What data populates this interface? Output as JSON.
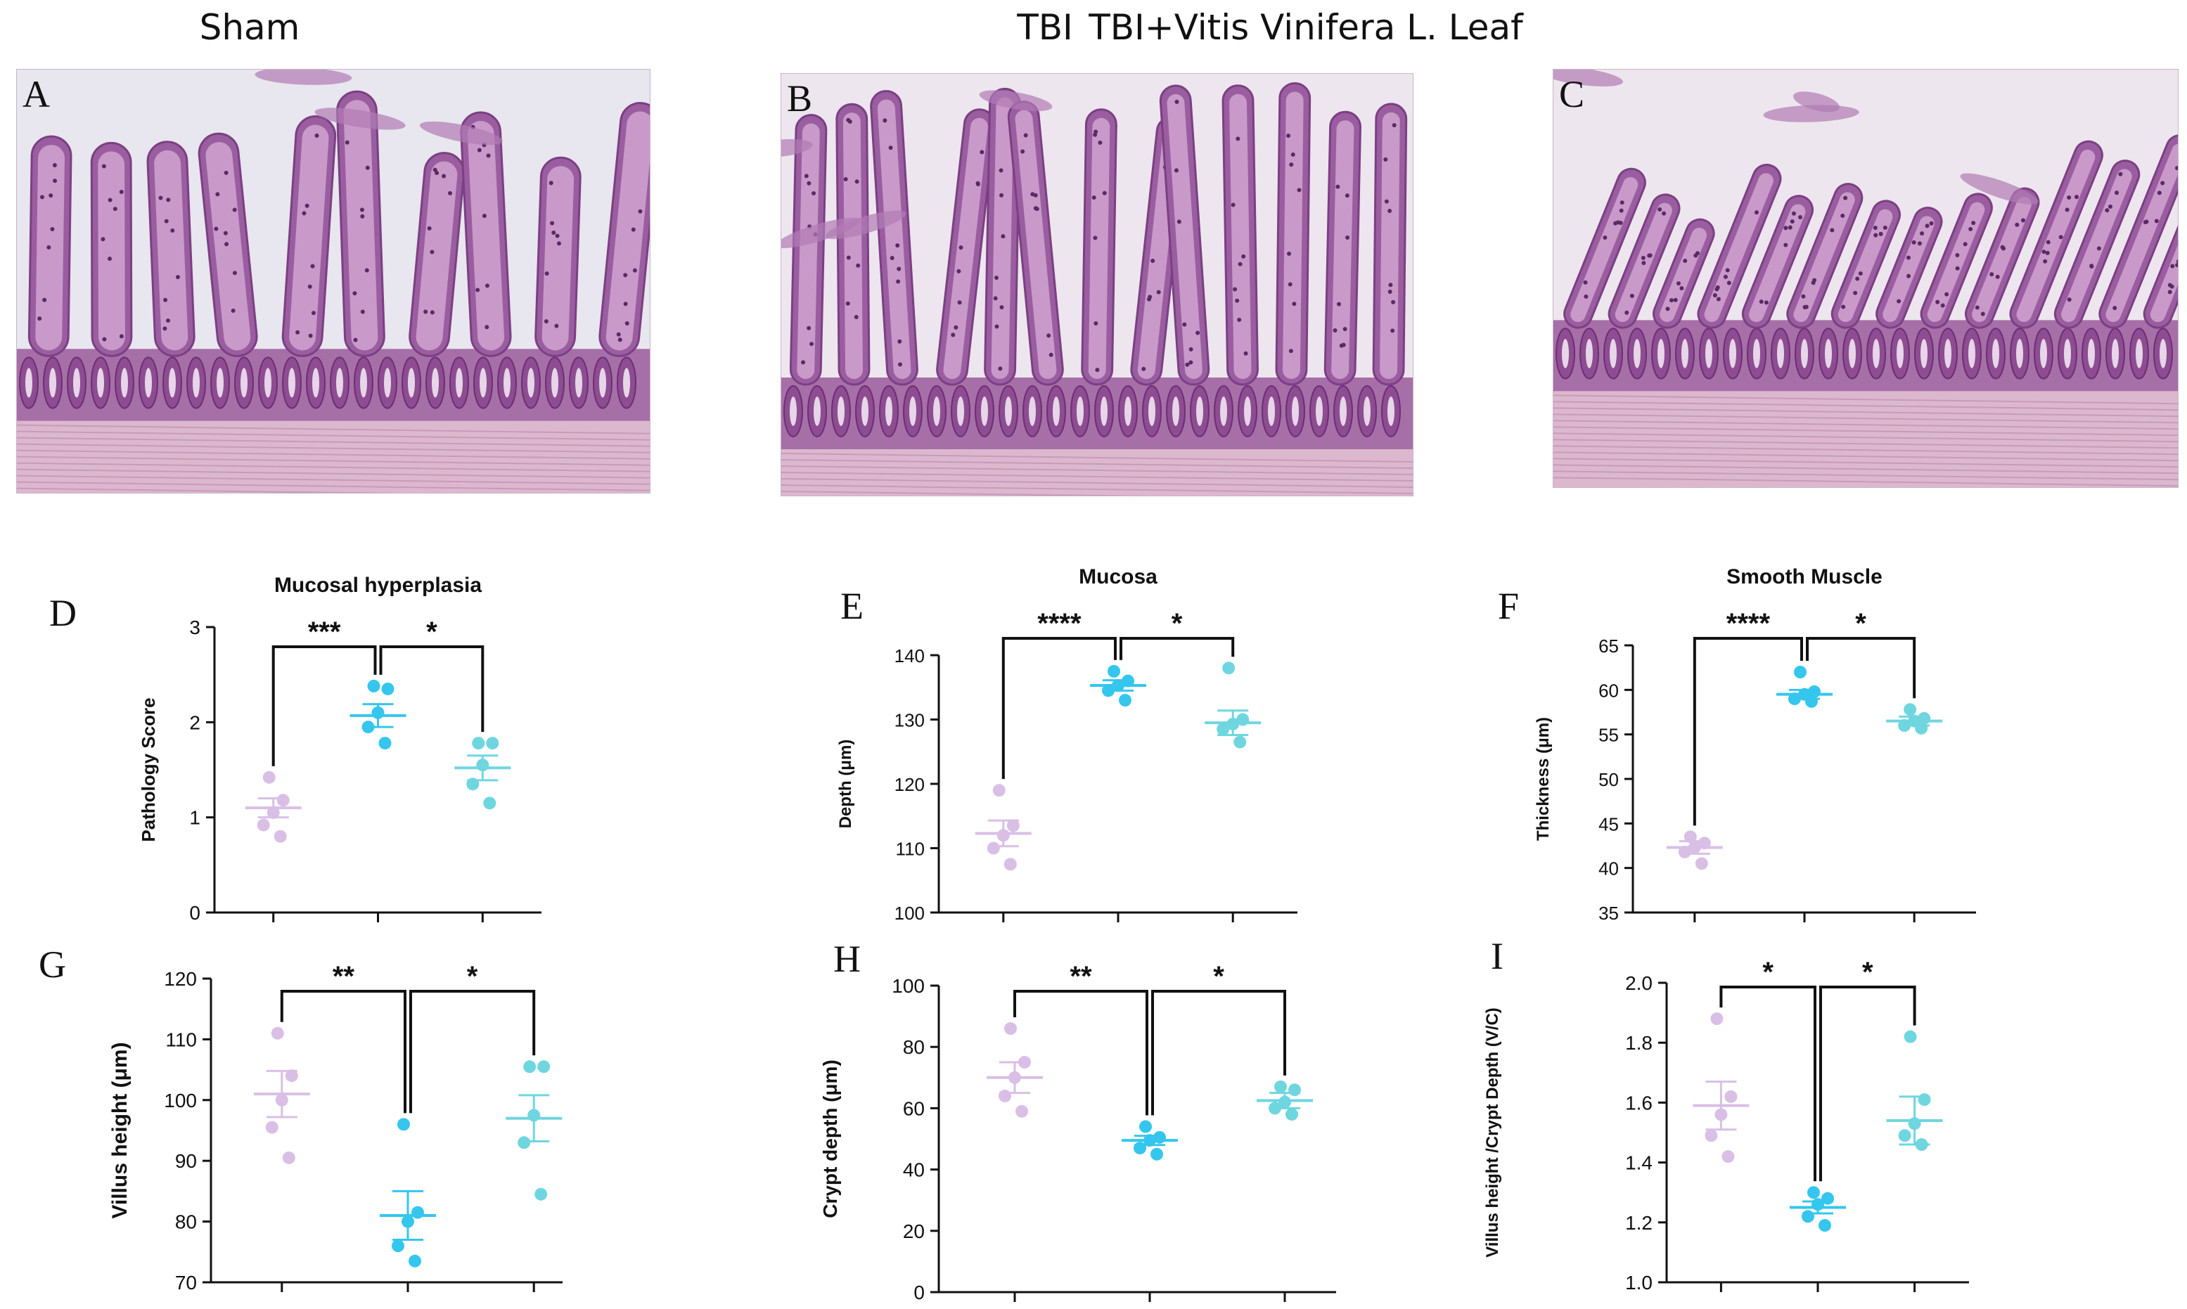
{
  "colors": {
    "sham": "#d9bfe6",
    "tbi": "#35c6ee",
    "treat": "#6fd6e0",
    "text": "#111111"
  },
  "columns": [
    {
      "title": "Sham",
      "letter": "A"
    },
    {
      "title": "TBI",
      "letter": "B"
    },
    {
      "title": "TBI+Vitis Vinifera L. Leaf",
      "letter": "C"
    }
  ],
  "chart_data": [
    {
      "type": "scatter",
      "letter": "D",
      "title": "Mucosal hyperplasia",
      "ylabel": "Pathology Score",
      "ylim": [
        0,
        3
      ],
      "yticks": [
        0,
        1,
        2,
        3
      ],
      "groups": [
        {
          "color": "#d9bfe6",
          "mean": 1.1,
          "sem": 0.1,
          "points": [
            1.42,
            1.18,
            1.05,
            0.92,
            0.8
          ]
        },
        {
          "color": "#35c6ee",
          "mean": 2.07,
          "sem": 0.12,
          "points": [
            2.38,
            2.35,
            2.1,
            1.95,
            1.78
          ]
        },
        {
          "color": "#6fd6e0",
          "mean": 1.52,
          "sem": 0.13,
          "points": [
            1.78,
            1.78,
            1.55,
            1.35,
            1.15
          ]
        }
      ],
      "significance": [
        {
          "from": 0,
          "to": 1,
          "label": "***"
        },
        {
          "from": 1,
          "to": 2,
          "label": "*"
        }
      ]
    },
    {
      "type": "scatter",
      "letter": "E",
      "title": "Mucosa",
      "ylabel": "Depth (μm)",
      "ylim": [
        100,
        140
      ],
      "yticks": [
        100,
        110,
        120,
        130,
        140
      ],
      "groups": [
        {
          "color": "#d9bfe6",
          "mean": 112.3,
          "sem": 2.0,
          "points": [
            119,
            113.5,
            112,
            110,
            107.5
          ]
        },
        {
          "color": "#35c6ee",
          "mean": 135.3,
          "sem": 0.8,
          "points": [
            137.5,
            136,
            135.3,
            134.5,
            133
          ]
        },
        {
          "color": "#6fd6e0",
          "mean": 129.5,
          "sem": 1.9,
          "points": [
            138,
            130,
            129.3,
            128.5,
            126.5
          ]
        }
      ],
      "significance": [
        {
          "from": 0,
          "to": 1,
          "label": "****"
        },
        {
          "from": 1,
          "to": 2,
          "label": "*"
        }
      ]
    },
    {
      "type": "scatter",
      "letter": "F",
      "title": "Smooth Muscle",
      "ylabel": "Thickness (μm)",
      "ylim": [
        35,
        65
      ],
      "yticks": [
        35,
        40,
        45,
        50,
        55,
        60,
        65
      ],
      "groups": [
        {
          "color": "#d9bfe6",
          "mean": 42.3,
          "sem": 0.7,
          "points": [
            43.5,
            42.8,
            42.3,
            41.8,
            40.5
          ]
        },
        {
          "color": "#35c6ee",
          "mean": 59.5,
          "sem": 0.5,
          "points": [
            62,
            59.8,
            59.5,
            59,
            58.7
          ]
        },
        {
          "color": "#6fd6e0",
          "mean": 56.5,
          "sem": 0.5,
          "points": [
            57.8,
            56.8,
            56.5,
            56,
            55.7
          ]
        }
      ],
      "significance": [
        {
          "from": 0,
          "to": 1,
          "label": "****"
        },
        {
          "from": 1,
          "to": 2,
          "label": "*"
        }
      ]
    },
    {
      "type": "scatter",
      "letter": "G",
      "title": "",
      "ylabel": "Villus height  (μm)",
      "ylim": [
        70,
        120
      ],
      "yticks": [
        70,
        80,
        90,
        100,
        110,
        120
      ],
      "groups": [
        {
          "color": "#d9bfe6",
          "mean": 101,
          "sem": 3.8,
          "points": [
            111,
            104,
            100,
            95.5,
            90.5
          ]
        },
        {
          "color": "#35c6ee",
          "mean": 81,
          "sem": 4.0,
          "points": [
            96,
            81.5,
            80,
            76,
            73.5
          ]
        },
        {
          "color": "#6fd6e0",
          "mean": 97,
          "sem": 3.8,
          "points": [
            105.5,
            105.5,
            97.5,
            93,
            84.5
          ]
        }
      ],
      "significance": [
        {
          "from": 0,
          "to": 1,
          "label": "**"
        },
        {
          "from": 1,
          "to": 2,
          "label": "*"
        }
      ]
    },
    {
      "type": "scatter",
      "letter": "H",
      "title": "",
      "ylabel": "Crypt depth  (μm)",
      "ylim": [
        0,
        100
      ],
      "yticks": [
        0,
        20,
        40,
        60,
        80,
        100
      ],
      "groups": [
        {
          "color": "#d9bfe6",
          "mean": 70,
          "sem": 5.0,
          "points": [
            86,
            75,
            70,
            64,
            59
          ]
        },
        {
          "color": "#35c6ee",
          "mean": 49.5,
          "sem": 1.5,
          "points": [
            54,
            50.5,
            49.5,
            47,
            45
          ]
        },
        {
          "color": "#6fd6e0",
          "mean": 62.5,
          "sem": 2.5,
          "points": [
            67,
            66,
            62,
            60,
            58
          ]
        }
      ],
      "significance": [
        {
          "from": 0,
          "to": 1,
          "label": "**"
        },
        {
          "from": 1,
          "to": 2,
          "label": "*"
        }
      ]
    },
    {
      "type": "scatter",
      "letter": "I",
      "title": "",
      "ylabel": "Villus height /Crypt Depth (V/C)",
      "ylim": [
        1.0,
        2.0
      ],
      "yticks": [
        "1.0",
        "1.2",
        "1.4",
        "1.6",
        "1.8",
        "2.0"
      ],
      "groups": [
        {
          "color": "#d9bfe6",
          "mean": 1.59,
          "sem": 0.08,
          "points": [
            1.88,
            1.62,
            1.56,
            1.49,
            1.42
          ]
        },
        {
          "color": "#35c6ee",
          "mean": 1.25,
          "sem": 0.02,
          "points": [
            1.3,
            1.28,
            1.26,
            1.22,
            1.19
          ]
        },
        {
          "color": "#6fd6e0",
          "mean": 1.54,
          "sem": 0.08,
          "points": [
            1.82,
            1.61,
            1.53,
            1.49,
            1.46
          ]
        }
      ],
      "significance": [
        {
          "from": 0,
          "to": 1,
          "label": "*"
        },
        {
          "from": 1,
          "to": 2,
          "label": "*"
        }
      ]
    }
  ]
}
